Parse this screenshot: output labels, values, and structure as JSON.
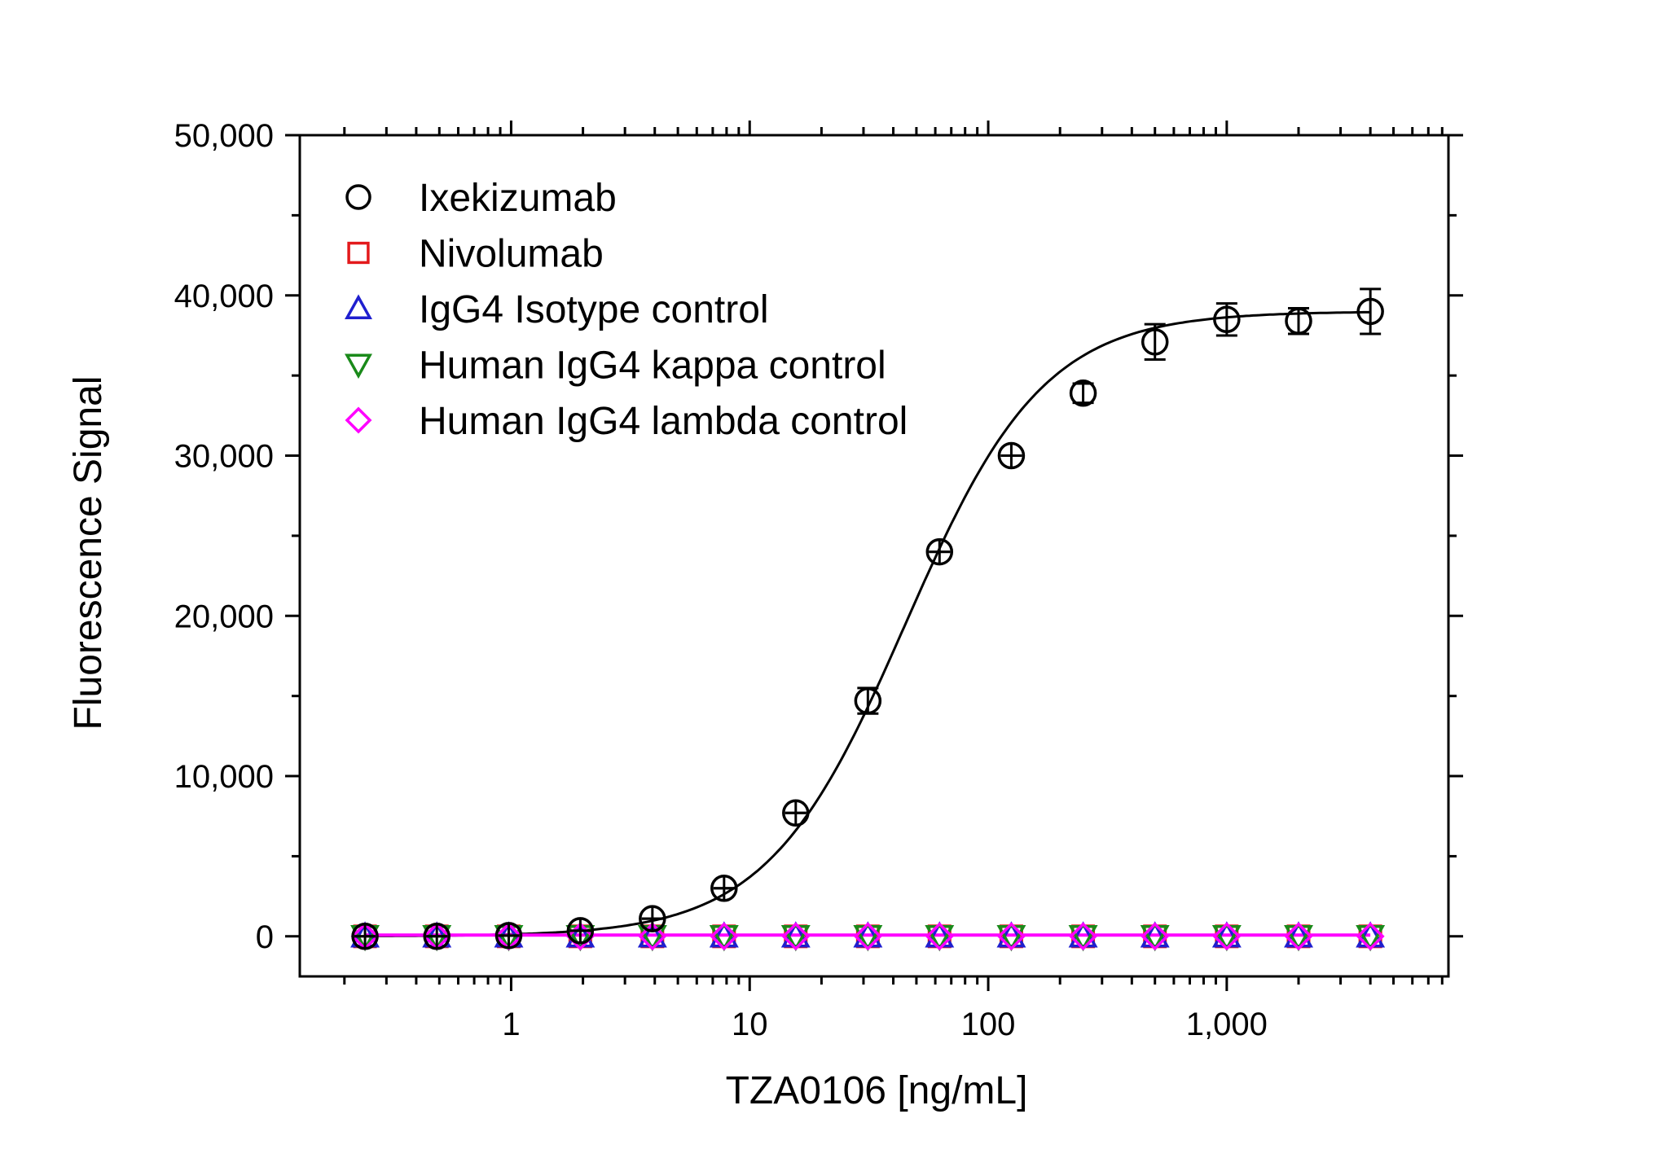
{
  "chart_data": {
    "type": "scatter",
    "xlabel": "TZA0106 [ng/mL]",
    "ylabel": "Fluorescence Signal",
    "x_scale": "log",
    "xlim": [
      0.13,
      8500
    ],
    "ylim": [
      -2500,
      50000
    ],
    "x_ticks": [
      1,
      10,
      100,
      1000
    ],
    "x_tick_labels": [
      "1",
      "10",
      "100",
      "1,000"
    ],
    "y_ticks": [
      0,
      10000,
      20000,
      30000,
      40000,
      50000
    ],
    "y_tick_labels": [
      "0",
      "10,000",
      "20,000",
      "30,000",
      "40,000",
      "50,000"
    ],
    "legend_position": "top-left",
    "x": [
      0.244,
      0.488,
      0.977,
      1.95,
      3.91,
      7.81,
      15.6,
      31.3,
      62.5,
      125,
      250,
      500,
      1000,
      2000,
      4000
    ],
    "series": [
      {
        "name": "Ixekizumab",
        "marker": "circle",
        "color": "#000000",
        "values": [
          0,
          0,
          50,
          350,
          1100,
          3000,
          7700,
          14700,
          24000,
          30000,
          33900,
          37100,
          38500,
          38400,
          39000
        ],
        "errors": [
          0,
          0,
          0,
          0,
          0,
          0,
          0,
          800,
          0,
          0,
          600,
          1100,
          1000,
          800,
          1400
        ]
      },
      {
        "name": "Nivolumab",
        "marker": "square",
        "color": "#e31a1c",
        "values": [
          0,
          0,
          0,
          0,
          0,
          0,
          0,
          0,
          0,
          0,
          0,
          0,
          0,
          0,
          0
        ]
      },
      {
        "name": "IgG4 Isotype control",
        "marker": "triangle-up",
        "color": "#1f1fcf",
        "values": [
          0,
          0,
          0,
          0,
          0,
          0,
          0,
          0,
          0,
          0,
          0,
          0,
          0,
          0,
          0
        ]
      },
      {
        "name": "Human IgG4 kappa control",
        "marker": "triangle-down",
        "color": "#1a8a1a",
        "values": [
          0,
          0,
          0,
          0,
          0,
          0,
          0,
          0,
          0,
          0,
          0,
          0,
          0,
          0,
          0
        ]
      },
      {
        "name": "Human IgG4 lambda control",
        "marker": "diamond",
        "color": "#ff00ff",
        "values": [
          0,
          0,
          0,
          0,
          0,
          0,
          0,
          0,
          0,
          0,
          0,
          0,
          0,
          0,
          0
        ]
      }
    ],
    "fits": [
      {
        "series": "Ixekizumab",
        "model": "4PL",
        "bottom": 0,
        "top": 39000,
        "ec50": 45,
        "hill": 1.5,
        "color": "#000000"
      },
      {
        "series": "Human IgG4 lambda control",
        "model": "flat",
        "value": 80,
        "color": "#ff00ff"
      }
    ]
  }
}
